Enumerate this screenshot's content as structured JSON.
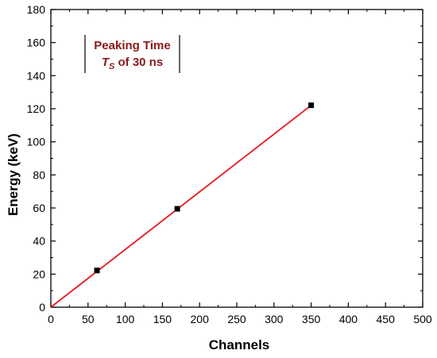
{
  "chart_data": {
    "type": "scatter",
    "title": "",
    "xlabel": "Channels",
    "ylabel": "Energy (keV)",
    "xlim": [
      0,
      500
    ],
    "ylim": [
      0,
      180
    ],
    "x_ticks": [
      0,
      50,
      100,
      150,
      200,
      250,
      300,
      350,
      400,
      450,
      500
    ],
    "y_ticks": [
      0,
      20,
      40,
      60,
      80,
      100,
      120,
      140,
      160,
      180
    ],
    "grid": false,
    "legend": "none",
    "series": [
      {
        "kind": "points",
        "marker": "square",
        "color": "#000000",
        "x": [
          62,
          170,
          350
        ],
        "y": [
          22.2,
          59.5,
          122.1
        ]
      },
      {
        "kind": "fit-line",
        "color": "#e8171b",
        "x": [
          0,
          350
        ],
        "y": [
          0,
          122.1
        ]
      }
    ],
    "annotations": {
      "line1": "Peaking Time",
      "line2_symbol": "T",
      "line2_subscript": "S",
      "line2_rest": " of 30 ns",
      "color": "#8b1a1a"
    }
  }
}
